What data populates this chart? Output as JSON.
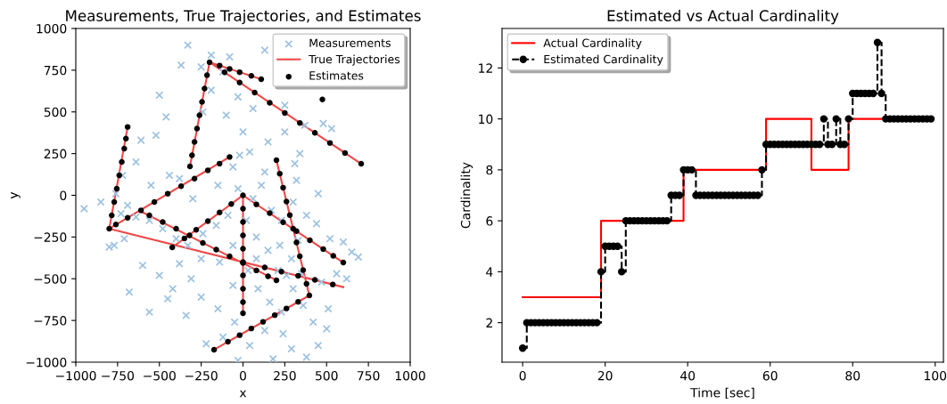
{
  "chart_data": [
    {
      "type": "scatter",
      "title": "Measurements, True Trajectories, and Estimates",
      "xlabel": "x",
      "ylabel": "y",
      "xlim": [
        -1000,
        1000
      ],
      "ylim": [
        -1000,
        1000
      ],
      "xticks": [
        {
          "value": -1000,
          "label": "−1000"
        },
        {
          "value": -750,
          "label": "−750"
        },
        {
          "value": -500,
          "label": "−500"
        },
        {
          "value": -250,
          "label": "−250"
        },
        0,
        250,
        500,
        750,
        1000
      ],
      "yticks": [
        {
          "value": -1000,
          "label": "−1000"
        },
        {
          "value": -750,
          "label": "−750"
        },
        {
          "value": -500,
          "label": "−500"
        },
        {
          "value": -250,
          "label": "−250"
        },
        0,
        250,
        500,
        750,
        1000
      ],
      "legend": "top right",
      "series": [
        {
          "name": "Measurements",
          "marker": "cross",
          "color": "#9ec2e0",
          "x": [
            -950,
            -330,
            130,
            -190,
            -80,
            -250,
            -120,
            -370,
            -500,
            -460,
            -240,
            -100,
            -190,
            -30,
            60,
            250,
            370,
            480,
            530,
            340,
            250,
            -20,
            130,
            150,
            40,
            -520,
            -610,
            -440,
            -380,
            -300,
            -150,
            -60,
            -720,
            -760,
            -690,
            -850,
            -770,
            -730,
            -640,
            -560,
            -480,
            -400,
            -330,
            -240,
            -160,
            -90,
            -30,
            60,
            110,
            170,
            230,
            300,
            380,
            440,
            520,
            600,
            650,
            690,
            560,
            470,
            350,
            290,
            220,
            150,
            80,
            20,
            -60,
            -140,
            -250,
            -380,
            -500,
            -600,
            -680,
            -560,
            -450,
            -340,
            -250,
            -150,
            -60,
            30,
            90,
            160,
            230,
            300,
            360,
            420,
            500,
            450,
            380,
            240,
            130,
            40,
            -50,
            -120,
            -220,
            -30,
            180,
            290,
            510,
            620,
            -710,
            -800,
            -420,
            -310,
            310,
            320,
            450,
            -640,
            -550,
            0,
            80,
            210,
            260,
            330
          ],
          "values": [
            -80,
            900,
            870,
            840,
            830,
            770,
            740,
            780,
            600,
            470,
            500,
            480,
            630,
            590,
            520,
            540,
            420,
            430,
            400,
            250,
            380,
            240,
            140,
            320,
            260,
            360,
            330,
            120,
            100,
            -20,
            60,
            170,
            120,
            10,
            -60,
            -40,
            -300,
            -110,
            -130,
            -150,
            -200,
            -260,
            -300,
            -230,
            -180,
            -120,
            40,
            -20,
            60,
            -90,
            -150,
            -40,
            -120,
            -170,
            -260,
            -280,
            -340,
            -370,
            -470,
            -520,
            -470,
            -380,
            -300,
            -330,
            -250,
            -150,
            -300,
            -400,
            -380,
            -410,
            -480,
            -420,
            -580,
            -700,
            -620,
            -720,
            -610,
            -680,
            -540,
            -450,
            -560,
            -640,
            -700,
            -560,
            -660,
            -760,
            -800,
            -900,
            -970,
            -830,
            -810,
            -900,
            -760,
            -850,
            -890,
            -990,
            -980,
            -920,
            -680,
            -500,
            -260,
            -310,
            -560,
            -500,
            190,
            90,
            10,
            200,
            60,
            380,
            -380,
            -450,
            -480,
            -270
          ]
        },
        {
          "name": "True Trajectories",
          "type": "line",
          "color": "#f04848",
          "line_style": "solid",
          "marker": "none",
          "x": [
            -800,
            -690,
            null,
            -800,
            -80,
            null,
            -800,
            600,
            null,
            -617,
            200,
            null,
            -200,
            -317,
            null,
            -200,
            109,
            null,
            -200,
            707,
            null,
            0,
            0,
            null,
            0,
            -423,
            null,
            0,
            600,
            null,
            200,
            397,
            null,
            397,
            -173
          ],
          "values": [
            -200,
            410,
            null,
            -200,
            230,
            null,
            -200,
            -550,
            null,
            -93,
            -509,
            null,
            797,
            173,
            null,
            797,
            696,
            null,
            797,
            189,
            null,
            0,
            -707,
            null,
            0,
            -312,
            null,
            0,
            -403,
            null,
            211,
            -600,
            null,
            -600,
            -925
          ]
        },
        {
          "name": "Estimates",
          "marker": "circle",
          "color": "#000000",
          "x": [
            -800,
            -785,
            -770,
            -755,
            -740,
            -725,
            -710,
            -700,
            -690,
            -760,
            -690,
            -610,
            -530,
            -450,
            -370,
            -290,
            -210,
            -140,
            -80,
            -560,
            -480,
            -400,
            -320,
            -240,
            -160,
            -80,
            0,
            80,
            150,
            200,
            130,
            230,
            330,
            430,
            537,
            -200,
            -215,
            -230,
            -245,
            -260,
            -275,
            -290,
            -305,
            -317,
            -140,
            -80,
            -20,
            50,
            109,
            -110,
            -20,
            70,
            160,
            250,
            340,
            430,
            520,
            610,
            707,
            0,
            0,
            0,
            0,
            0,
            0,
            0,
            0,
            0,
            -70,
            -140,
            -210,
            -280,
            -350,
            -423,
            0,
            80,
            160,
            240,
            320,
            400,
            480,
            540,
            600,
            200,
            220,
            240,
            260,
            280,
            300,
            320,
            340,
            360,
            380,
            397,
            330,
            260,
            190,
            120,
            50,
            -20,
            -90,
            -173,
            475
          ],
          "values": [
            -200,
            -120,
            -40,
            40,
            120,
            200,
            280,
            340,
            410,
            -175,
            -135,
            -90,
            -40,
            10,
            55,
            100,
            150,
            190,
            230,
            -120,
            -160,
            -200,
            -240,
            -285,
            -325,
            -365,
            -405,
            -450,
            -485,
            -509,
            -432,
            -457,
            -482,
            -507,
            -534,
            797,
            720,
            640,
            560,
            480,
            400,
            320,
            240,
            173,
            778,
            758,
            738,
            716,
            696,
            737,
            676,
            616,
            555,
            494,
            434,
            375,
            314,
            254,
            189,
            -80,
            -160,
            -240,
            -320,
            -400,
            -480,
            -560,
            -640,
            -707,
            -52,
            -103,
            -155,
            -207,
            -258,
            -312,
            0,
            -54,
            -107,
            -161,
            -215,
            -269,
            -322,
            -363,
            -403,
            211,
            130,
            46,
            -37,
            -119,
            -200,
            -283,
            -365,
            -448,
            -530,
            -600,
            -638,
            -678,
            -718,
            -758,
            -798,
            -838,
            -877,
            -925,
            575
          ]
        }
      ]
    },
    {
      "type": "step",
      "title": "Estimated vs Actual Cardinality",
      "xlabel": "Time [sec]",
      "ylabel": "Cardinality",
      "xlim": [
        -5,
        102
      ],
      "ylim": [
        0.45,
        13.55
      ],
      "xticks": [
        0,
        20,
        40,
        60,
        80,
        100
      ],
      "yticks": [
        2,
        4,
        6,
        8,
        10,
        12
      ],
      "legend": "top left",
      "series": [
        {
          "name": "Actual Cardinality",
          "color": "#ff0000",
          "line_style": "solid",
          "marker": "none",
          "x": [
            0,
            19,
            39,
            59,
            70,
            79,
            99
          ],
          "values": [
            3,
            6,
            8,
            10,
            8,
            10,
            10
          ]
        },
        {
          "name": "Estimated Cardinality",
          "color": "#000000",
          "line_style": "dashed",
          "marker": "circle",
          "x": [
            0,
            1,
            2,
            3,
            4,
            5,
            6,
            7,
            8,
            9,
            10,
            11,
            12,
            13,
            14,
            15,
            16,
            17,
            18,
            19,
            20,
            21,
            22,
            23,
            24,
            25,
            26,
            27,
            28,
            29,
            30,
            31,
            32,
            33,
            34,
            35,
            36,
            37,
            38,
            39,
            40,
            41,
            42,
            43,
            44,
            45,
            46,
            47,
            48,
            49,
            50,
            51,
            52,
            53,
            54,
            55,
            56,
            57,
            58,
            59,
            60,
            61,
            62,
            63,
            64,
            65,
            66,
            67,
            68,
            69,
            70,
            71,
            72,
            73,
            74,
            75,
            76,
            77,
            78,
            79,
            80,
            81,
            82,
            83,
            84,
            85,
            86,
            87,
            88,
            89,
            90,
            91,
            92,
            93,
            94,
            95,
            96,
            97,
            98,
            99
          ],
          "values": [
            1,
            2,
            2,
            2,
            2,
            2,
            2,
            2,
            2,
            2,
            2,
            2,
            2,
            2,
            2,
            2,
            2,
            2,
            2,
            4,
            5,
            5,
            5,
            5,
            4,
            6,
            6,
            6,
            6,
            6,
            6,
            6,
            6,
            6,
            6,
            6,
            7,
            7,
            7,
            8,
            8,
            8,
            7,
            7,
            7,
            7,
            7,
            7,
            7,
            7,
            7,
            7,
            7,
            7,
            7,
            7,
            7,
            7,
            8,
            9,
            9,
            9,
            9,
            9,
            9,
            9,
            9,
            9,
            9,
            9,
            9,
            9,
            9,
            10,
            9,
            9,
            10,
            9,
            9,
            10,
            11,
            11,
            11,
            11,
            11,
            11,
            13,
            11,
            10,
            10,
            10,
            10,
            10,
            10,
            10,
            10,
            10,
            10,
            10,
            10
          ]
        }
      ]
    }
  ]
}
